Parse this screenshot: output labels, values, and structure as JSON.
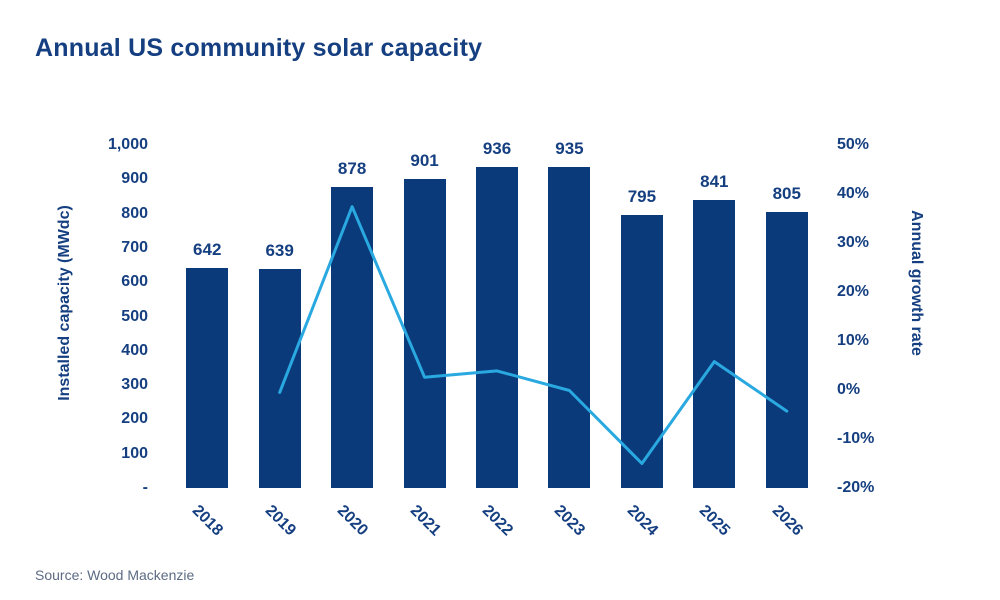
{
  "page": {
    "title": "Annual US community solar capacity",
    "source": "Source: Wood Mackenzie"
  },
  "chart_data": {
    "type": "bar",
    "title": "Annual US community solar capacity",
    "categories": [
      "2018",
      "2019",
      "2020",
      "2021",
      "2022",
      "2023",
      "2024",
      "2025",
      "2026"
    ],
    "series": [
      {
        "name": "Installed capacity (MWdc)",
        "type": "bar",
        "axis": "left",
        "color": "#0B3A7B",
        "values": [
          642,
          639,
          878,
          901,
          936,
          935,
          795,
          841,
          805
        ],
        "data_labels": [
          642,
          639,
          878,
          901,
          936,
          935,
          795,
          841,
          805
        ]
      },
      {
        "name": "Annual growth rate",
        "type": "line",
        "axis": "right",
        "color": "#29A9E0",
        "values": [
          null,
          -0.5,
          37.4,
          2.6,
          3.9,
          -0.1,
          -15.0,
          5.8,
          -4.3
        ]
      }
    ],
    "left_axis": {
      "label": "Installed capacity (MWdc)",
      "min": 0,
      "max": 1000,
      "step": 100,
      "zero_tick_label": "-",
      "tick_labels": [
        "1,000",
        "900",
        "800",
        "700",
        "600",
        "500",
        "400",
        "300",
        "200",
        "100",
        "-"
      ]
    },
    "right_axis": {
      "label": "Annual growth rate",
      "min": -20,
      "max": 50,
      "step": 10,
      "suffix": "%",
      "tick_labels": [
        "50%",
        "40%",
        "30%",
        "20%",
        "10%",
        "0%",
        "-10%",
        "-20%"
      ]
    },
    "legend": "none",
    "gridlines": false,
    "source": "Source: Wood Mackenzie",
    "colors": {
      "bar": "#0B3A7B",
      "line": "#29A9E0",
      "text": "#153F80",
      "source_text": "#5C6B84",
      "background": "#FFFFFF"
    }
  }
}
